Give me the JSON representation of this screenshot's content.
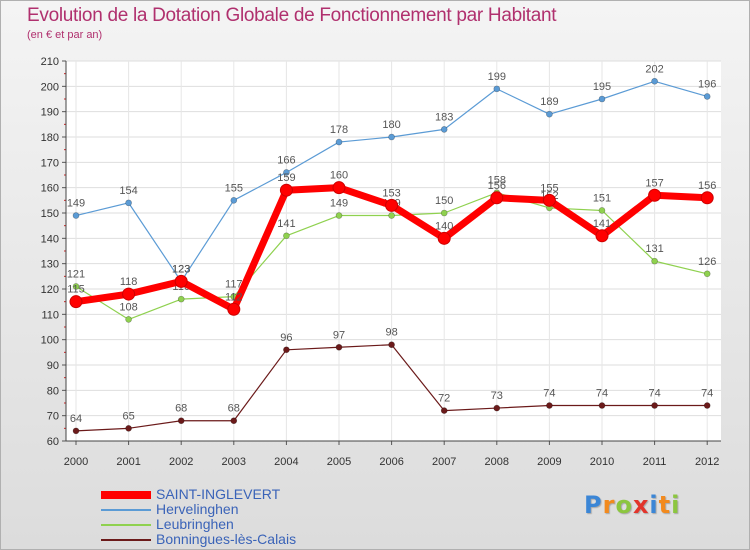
{
  "chart_data": {
    "type": "line",
    "title": "Evolution de la Dotation Globale de Fonctionnement par Habitant",
    "subtitle": "(en € et par an)",
    "xlabel": "",
    "ylabel": "",
    "x": [
      "2000",
      "2001",
      "2002",
      "2003",
      "2004",
      "2005",
      "2006",
      "2007",
      "2008",
      "2009",
      "2010",
      "2011",
      "2012"
    ],
    "ylim": [
      60,
      210
    ],
    "yticks": [
      60,
      70,
      80,
      90,
      100,
      110,
      120,
      130,
      140,
      150,
      160,
      170,
      180,
      190,
      200,
      210
    ],
    "grid": true,
    "legend_position": "bottom-left",
    "series": [
      {
        "name": "Hervelinghen",
        "color": "#5b9bd5",
        "values": [
          149,
          154,
          123,
          155,
          166,
          178,
          180,
          183,
          199,
          189,
          195,
          202,
          196
        ],
        "labels": [
          "149",
          "154",
          "123",
          "155",
          "166",
          "178",
          "180",
          "183",
          "199",
          "189",
          "195",
          "202",
          "196"
        ]
      },
      {
        "name": "Leubringhen",
        "color": "#8fd14f",
        "values": [
          121,
          108,
          116,
          117,
          141,
          149,
          149,
          150,
          158,
          152,
          151,
          131,
          126
        ],
        "labels": [
          "121",
          "108",
          "116",
          "117",
          "141",
          "149",
          "149",
          "150",
          "158",
          "152",
          "151",
          "131",
          "126"
        ]
      },
      {
        "name": "Bonningues-lès-Calais",
        "color": "#6b1a1a",
        "values": [
          64,
          65,
          68,
          68,
          96,
          97,
          98,
          72,
          73,
          74,
          74,
          74,
          74
        ],
        "labels": [
          "64",
          "65",
          "68",
          "68",
          "96",
          "97",
          "98",
          "72",
          "73",
          "74",
          "74",
          "74",
          "74"
        ]
      },
      {
        "name": "SAINT-INGLEVERT",
        "color": "#ff0000",
        "values": [
          115,
          118,
          123,
          112,
          159,
          160,
          153,
          140,
          156,
          155,
          141,
          157,
          156
        ],
        "labels": [
          "115",
          "118",
          "123",
          "112",
          "159",
          "160",
          "153",
          "140",
          "156",
          "155",
          "141",
          "157",
          "156"
        ]
      }
    ],
    "legend_order": [
      "SAINT-INGLEVERT",
      "Hervelinghen",
      "Leubringhen",
      "Bonningues-lès-Calais"
    ]
  },
  "logo": {
    "text": "Proxiti",
    "letters": [
      "P",
      "r",
      "o",
      "x",
      "i",
      "t",
      "i"
    ],
    "colors": [
      "#3b86d6",
      "#f28a1e",
      "#8cc63f",
      "#e2342b",
      "#3b86d6",
      "#f28a1e",
      "#8cc63f"
    ]
  }
}
